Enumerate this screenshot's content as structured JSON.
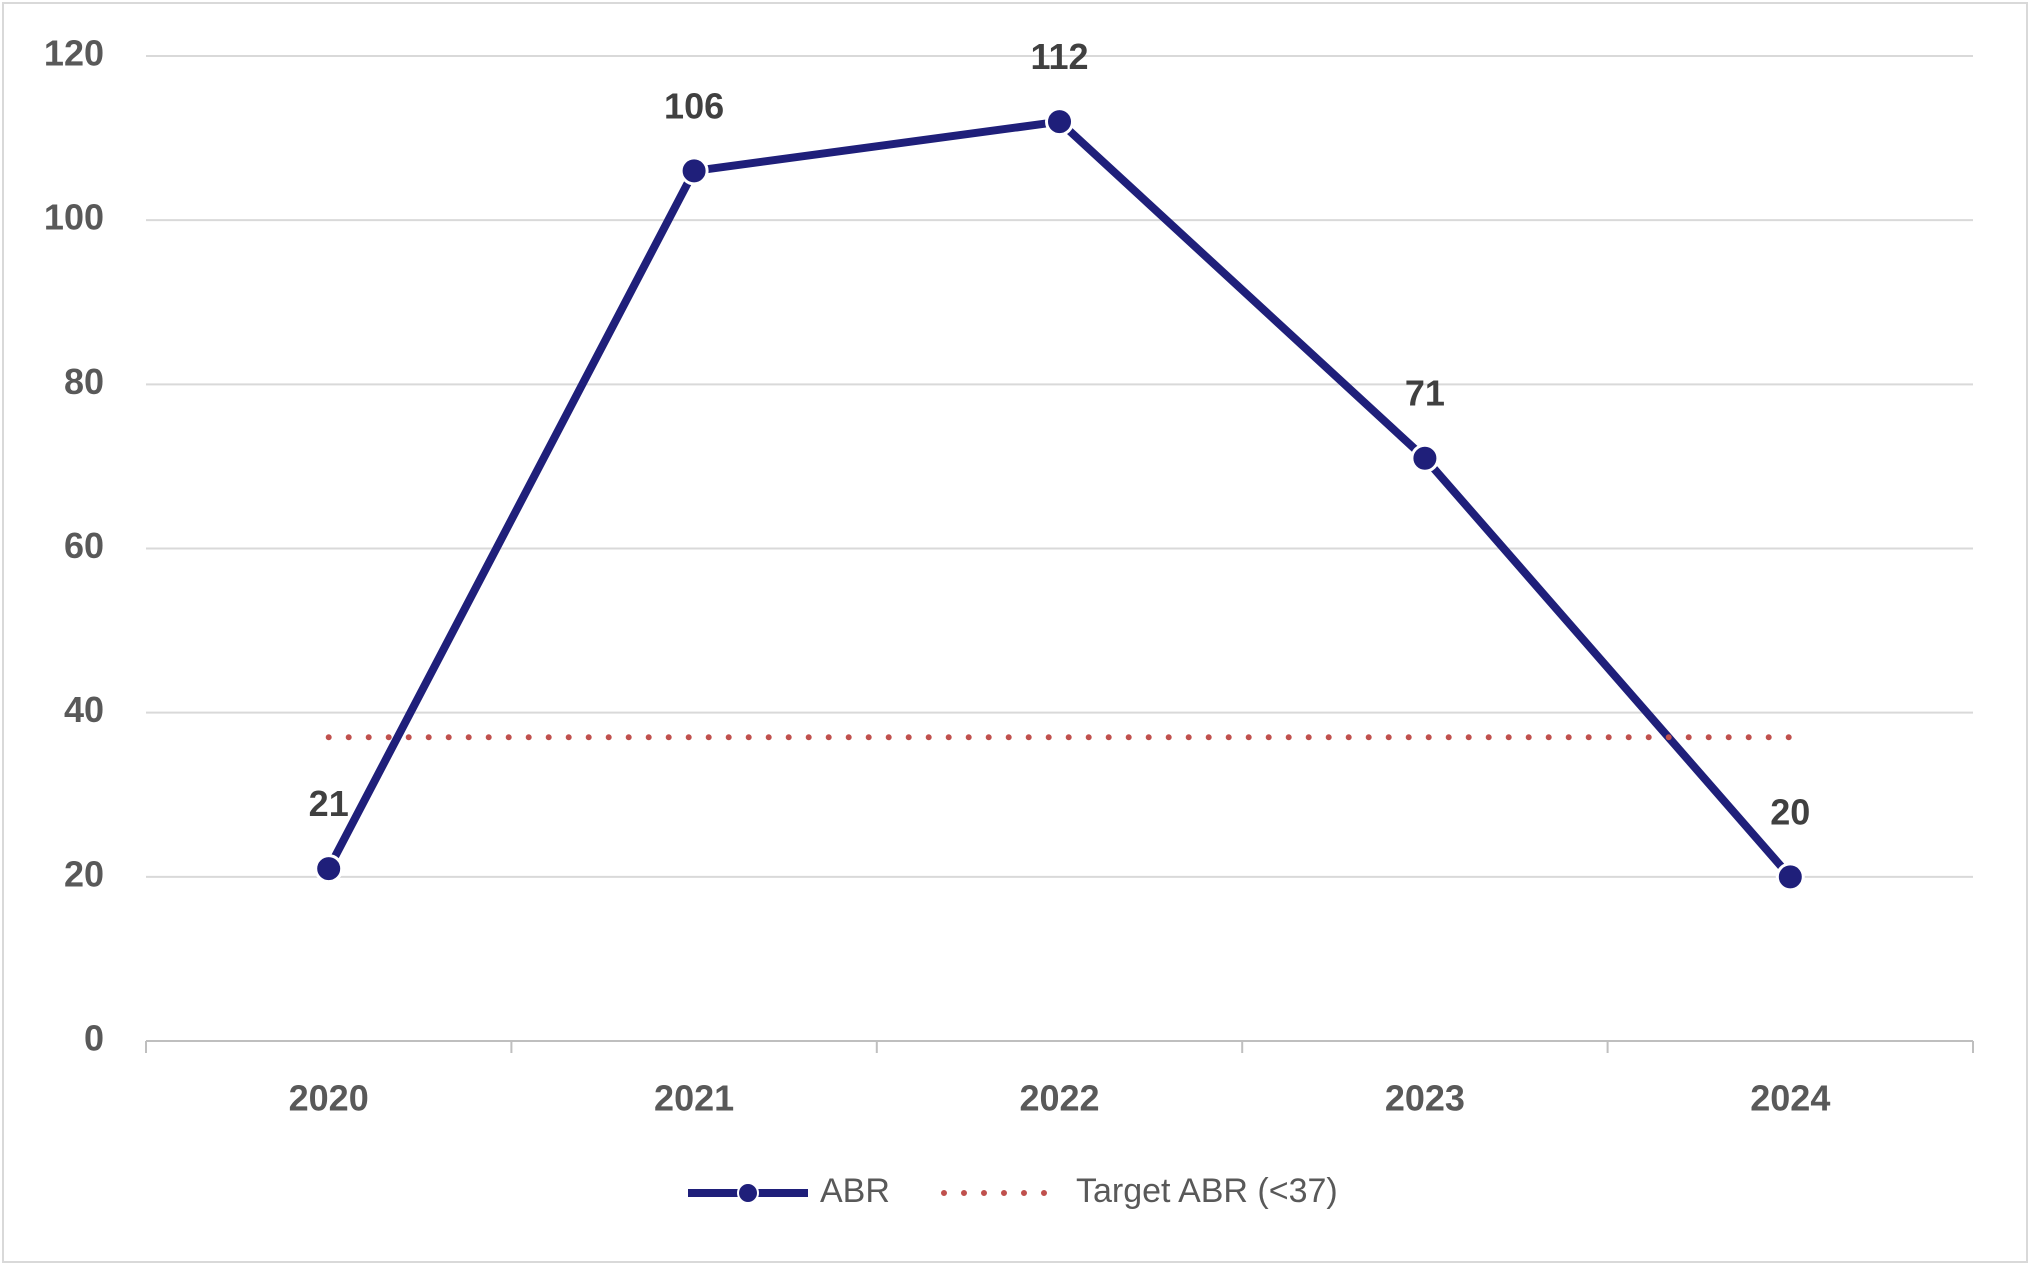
{
  "chart_data": {
    "type": "line",
    "categories": [
      "2020",
      "2021",
      "2022",
      "2023",
      "2024"
    ],
    "series": [
      {
        "name": "ABR",
        "color": "#1f1f7a",
        "values": [
          21,
          106,
          112,
          71,
          20
        ],
        "markers": true,
        "data_labels": true
      },
      {
        "name": "Target ABR (<37)",
        "color": "#c0504d",
        "values": [
          37,
          37,
          37,
          37,
          37
        ],
        "dotted": true
      }
    ],
    "ylim": [
      0,
      120
    ],
    "yticks": [
      0,
      20,
      40,
      60,
      80,
      100,
      120
    ],
    "grid": true,
    "legend": "bottom"
  }
}
